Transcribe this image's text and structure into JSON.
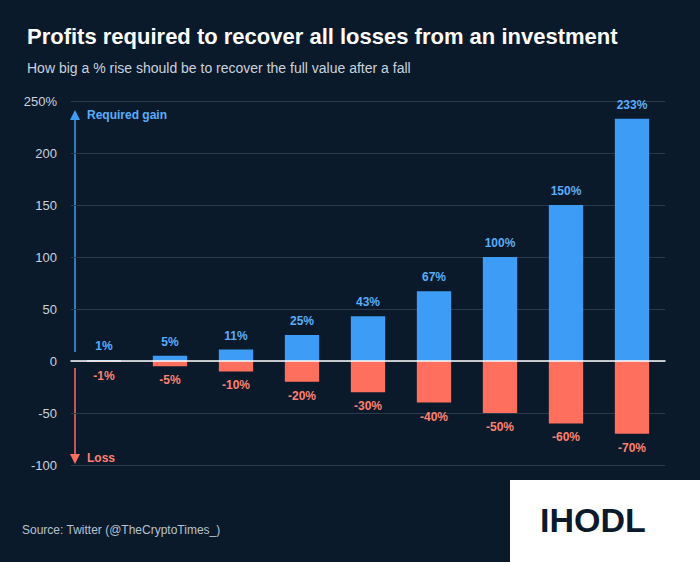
{
  "chart_data": {
    "type": "bar",
    "title": "Profits required to recover all losses from an investment",
    "subtitle": "How big a % rise should be to recover the full value after a fall",
    "categories": [
      null,
      null,
      null,
      null,
      null,
      null,
      null,
      null,
      null
    ],
    "series": [
      {
        "name": "Required gain",
        "color": "#3d9cf5",
        "values": [
          1,
          5,
          11,
          25,
          43,
          67,
          100,
          150,
          233
        ],
        "value_labels": [
          "1%",
          "5%",
          "11%",
          "25%",
          "43%",
          "67%",
          "100%",
          "150%",
          "233%"
        ]
      },
      {
        "name": "Loss",
        "color": "#ff6f5e",
        "values": [
          -1,
          -5,
          -10,
          -20,
          -30,
          -40,
          -50,
          -60,
          -70
        ],
        "value_labels": [
          "-1%",
          "-5%",
          "-10%",
          "-20%",
          "-30%",
          "-40%",
          "-50%",
          "-60%",
          "-70%"
        ]
      }
    ],
    "ylim": [
      -100,
      250
    ],
    "yticks": [
      -100,
      -50,
      0,
      50,
      100,
      150,
      200,
      {
        "value": 250,
        "label": "250%"
      }
    ],
    "grid": true,
    "data_labels": true,
    "tick_labels": "y",
    "source": "Source: Twitter (@TheCryptoTimes_)",
    "logo": "IHODL"
  }
}
